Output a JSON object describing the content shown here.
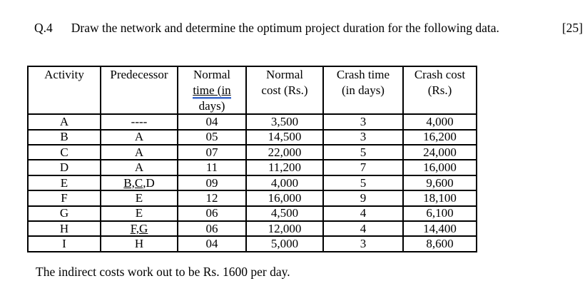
{
  "question": {
    "number": "Q.4",
    "text": "Draw the network and determine the optimum project duration for the following data.",
    "marks": "[25]"
  },
  "table": {
    "headers": {
      "activity": "Activity",
      "predecessor": "Predecessor",
      "normal_time": {
        "line1": "Normal",
        "line2_underlined": "time (in",
        "line3": "days)"
      },
      "normal_cost": {
        "line1": "Normal",
        "line2": "cost (Rs.)"
      },
      "crash_time": {
        "line1": "Crash time",
        "line2": "(in days)"
      },
      "crash_cost": {
        "line1": "Crash cost",
        "line2": "(Rs.)"
      }
    },
    "rows": [
      {
        "activity": "A",
        "pred_underlined": "",
        "pred_plain": "----",
        "normal_time": "04",
        "normal_cost": "3,500",
        "crash_time": "3",
        "crash_cost": "4,000"
      },
      {
        "activity": "B",
        "pred_underlined": "",
        "pred_plain": "A",
        "normal_time": "05",
        "normal_cost": "14,500",
        "crash_time": "3",
        "crash_cost": "16,200"
      },
      {
        "activity": "C",
        "pred_underlined": "",
        "pred_plain": "A",
        "normal_time": "07",
        "normal_cost": "22,000",
        "crash_time": "5",
        "crash_cost": "24,000"
      },
      {
        "activity": "D",
        "pred_underlined": "",
        "pred_plain": "A",
        "normal_time": "11",
        "normal_cost": "11,200",
        "crash_time": "7",
        "crash_cost": "16,000"
      },
      {
        "activity": "E",
        "pred_underlined": "B,C",
        "pred_plain": ",D",
        "normal_time": "09",
        "normal_cost": "4,000",
        "crash_time": "5",
        "crash_cost": "9,600"
      },
      {
        "activity": "F",
        "pred_underlined": "",
        "pred_plain": "E",
        "normal_time": "12",
        "normal_cost": "16,000",
        "crash_time": "9",
        "crash_cost": "18,100"
      },
      {
        "activity": "G",
        "pred_underlined": "",
        "pred_plain": "E",
        "normal_time": "06",
        "normal_cost": "4,500",
        "crash_time": "4",
        "crash_cost": "6,100"
      },
      {
        "activity": "H",
        "pred_underlined": "F,G",
        "pred_plain": "",
        "normal_time": "06",
        "normal_cost": "12,000",
        "crash_time": "4",
        "crash_cost": "14,400"
      },
      {
        "activity": "I",
        "pred_underlined": "",
        "pred_plain": "H",
        "normal_time": "04",
        "normal_cost": "5,000",
        "crash_time": "3",
        "crash_cost": "8,600"
      }
    ]
  },
  "note": "The indirect costs work out to be Rs. 1600 per day.",
  "colors": {
    "text": "#000000",
    "background": "#ffffff",
    "table_border": "#000000",
    "grammar_underline_blue": "#3a66c8"
  }
}
